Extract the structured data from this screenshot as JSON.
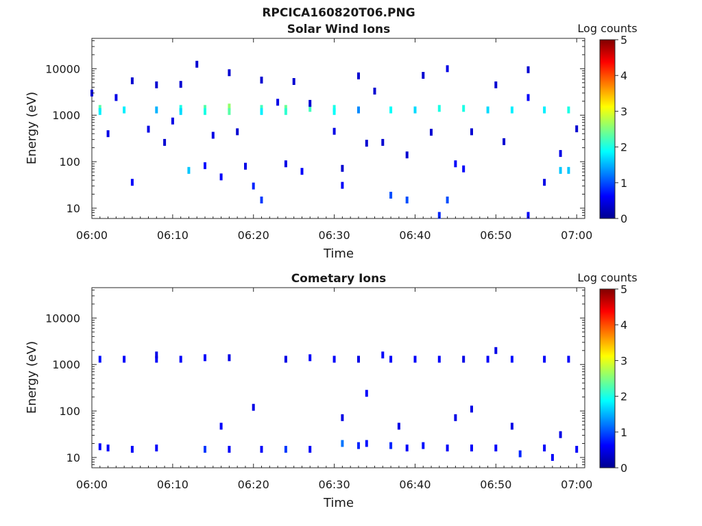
{
  "figure_title": "RPCICA160820T06.PNG",
  "chart_data": [
    {
      "type": "heatmap",
      "title": "Solar Wind Ions",
      "xlabel": "Time",
      "ylabel": "Energy (eV)",
      "xlim": [
        "06:00",
        "07:01"
      ],
      "x_ticks": [
        "06:00",
        "06:10",
        "06:20",
        "06:30",
        "06:40",
        "06:50",
        "07:00"
      ],
      "ylim": [
        6,
        45000
      ],
      "y_scale": "log",
      "y_ticks": [
        "10",
        "100",
        "1000",
        "10000"
      ],
      "grid": false,
      "colorbar": {
        "title": "Log counts",
        "range": [
          0,
          5
        ],
        "ticks": [
          "0",
          "1",
          "2",
          "3",
          "4",
          "5"
        ],
        "colormap": "jet"
      },
      "points": [
        {
          "t": "06:01",
          "e": 1400,
          "v": 2.3
        },
        {
          "t": "06:01",
          "e": 1200,
          "v": 1.8
        },
        {
          "t": "06:04",
          "e": 1300,
          "v": 1.8
        },
        {
          "t": "06:08",
          "e": 1300,
          "v": 1.5
        },
        {
          "t": "06:11",
          "e": 1400,
          "v": 2.0
        },
        {
          "t": "06:11",
          "e": 1200,
          "v": 1.7
        },
        {
          "t": "06:14",
          "e": 1400,
          "v": 2.3
        },
        {
          "t": "06:14",
          "e": 1200,
          "v": 2.0
        },
        {
          "t": "06:17",
          "e": 1500,
          "v": 2.6
        },
        {
          "t": "06:17",
          "e": 1200,
          "v": 2.3
        },
        {
          "t": "06:21",
          "e": 1400,
          "v": 2.2
        },
        {
          "t": "06:21",
          "e": 1200,
          "v": 1.8
        },
        {
          "t": "06:24",
          "e": 1400,
          "v": 2.4
        },
        {
          "t": "06:24",
          "e": 1200,
          "v": 2.1
        },
        {
          "t": "06:27",
          "e": 1400,
          "v": 2.2
        },
        {
          "t": "06:30",
          "e": 1400,
          "v": 2.0
        },
        {
          "t": "06:30",
          "e": 1200,
          "v": 1.9
        },
        {
          "t": "06:33",
          "e": 1300,
          "v": 1.3
        },
        {
          "t": "06:37",
          "e": 1300,
          "v": 1.9
        },
        {
          "t": "06:40",
          "e": 1300,
          "v": 1.7
        },
        {
          "t": "06:43",
          "e": 1400,
          "v": 2.0
        },
        {
          "t": "06:46",
          "e": 1400,
          "v": 2.0
        },
        {
          "t": "06:49",
          "e": 1300,
          "v": 1.7
        },
        {
          "t": "06:52",
          "e": 1300,
          "v": 1.8
        },
        {
          "t": "06:56",
          "e": 1300,
          "v": 1.8
        },
        {
          "t": "06:59",
          "e": 1300,
          "v": 2.0
        },
        {
          "t": "06:00",
          "e": 3000,
          "v": 0.4
        },
        {
          "t": "06:02",
          "e": 400,
          "v": 0.5
        },
        {
          "t": "06:03",
          "e": 2400,
          "v": 0.5
        },
        {
          "t": "06:05",
          "e": 5500,
          "v": 0.4
        },
        {
          "t": "06:05",
          "e": 36,
          "v": 0.6
        },
        {
          "t": "06:07",
          "e": 500,
          "v": 0.5
        },
        {
          "t": "06:08",
          "e": 4500,
          "v": 0.4
        },
        {
          "t": "06:09",
          "e": 260,
          "v": 0.4
        },
        {
          "t": "06:10",
          "e": 750,
          "v": 0.5
        },
        {
          "t": "06:11",
          "e": 4600,
          "v": 0.4
        },
        {
          "t": "06:12",
          "e": 65,
          "v": 1.6
        },
        {
          "t": "06:13",
          "e": 12500,
          "v": 0.4
        },
        {
          "t": "06:14",
          "e": 82,
          "v": 0.7
        },
        {
          "t": "06:15",
          "e": 370,
          "v": 0.5
        },
        {
          "t": "06:16",
          "e": 47,
          "v": 0.6
        },
        {
          "t": "06:17",
          "e": 8200,
          "v": 0.4
        },
        {
          "t": "06:18",
          "e": 440,
          "v": 0.4
        },
        {
          "t": "06:19",
          "e": 80,
          "v": 0.5
        },
        {
          "t": "06:20",
          "e": 30,
          "v": 0.8
        },
        {
          "t": "06:21",
          "e": 5700,
          "v": 0.4
        },
        {
          "t": "06:21",
          "e": 15,
          "v": 0.9
        },
        {
          "t": "06:23",
          "e": 1900,
          "v": 0.5
        },
        {
          "t": "06:24",
          "e": 90,
          "v": 0.5
        },
        {
          "t": "06:25",
          "e": 5300,
          "v": 0.4
        },
        {
          "t": "06:26",
          "e": 62,
          "v": 0.6
        },
        {
          "t": "06:27",
          "e": 1800,
          "v": 0.4
        },
        {
          "t": "06:30",
          "e": 450,
          "v": 0.5
        },
        {
          "t": "06:31",
          "e": 72,
          "v": 0.4
        },
        {
          "t": "06:31",
          "e": 31,
          "v": 0.6
        },
        {
          "t": "06:33",
          "e": 7000,
          "v": 0.4
        },
        {
          "t": "06:34",
          "e": 250,
          "v": 0.4
        },
        {
          "t": "06:35",
          "e": 3300,
          "v": 0.4
        },
        {
          "t": "06:36",
          "e": 260,
          "v": 0.4
        },
        {
          "t": "06:37",
          "e": 19,
          "v": 1.0
        },
        {
          "t": "06:39",
          "e": 140,
          "v": 0.4
        },
        {
          "t": "06:39",
          "e": 15,
          "v": 1.0
        },
        {
          "t": "06:41",
          "e": 7200,
          "v": 0.4
        },
        {
          "t": "06:42",
          "e": 430,
          "v": 0.4
        },
        {
          "t": "06:43",
          "e": 7,
          "v": 0.8
        },
        {
          "t": "06:44",
          "e": 15,
          "v": 1.0
        },
        {
          "t": "06:44",
          "e": 10000,
          "v": 0.5
        },
        {
          "t": "06:45",
          "e": 90,
          "v": 0.6
        },
        {
          "t": "06:46",
          "e": 70,
          "v": 0.6
        },
        {
          "t": "06:47",
          "e": 440,
          "v": 0.4
        },
        {
          "t": "06:50",
          "e": 4500,
          "v": 0.4
        },
        {
          "t": "06:51",
          "e": 270,
          "v": 0.4
        },
        {
          "t": "06:54",
          "e": 2400,
          "v": 0.6
        },
        {
          "t": "06:54",
          "e": 9500,
          "v": 0.4
        },
        {
          "t": "06:54",
          "e": 7,
          "v": 0.6
        },
        {
          "t": "06:56",
          "e": 36,
          "v": 0.5
        },
        {
          "t": "06:58",
          "e": 150,
          "v": 0.5
        },
        {
          "t": "06:58",
          "e": 65,
          "v": 1.6
        },
        {
          "t": "06:59",
          "e": 65,
          "v": 1.6
        },
        {
          "t": "07:00",
          "e": 510,
          "v": 0.4
        }
      ]
    },
    {
      "type": "heatmap",
      "title": "Cometary Ions",
      "xlabel": "Time",
      "ylabel": "Energy (eV)",
      "xlim": [
        "06:00",
        "07:01"
      ],
      "x_ticks": [
        "06:00",
        "06:10",
        "06:20",
        "06:30",
        "06:40",
        "06:50",
        "07:00"
      ],
      "ylim": [
        6,
        45000
      ],
      "y_scale": "log",
      "y_ticks": [
        "10",
        "100",
        "1000",
        "10000"
      ],
      "grid": false,
      "colorbar": {
        "title": "Log counts",
        "range": [
          0,
          5
        ],
        "ticks": [
          "0",
          "1",
          "2",
          "3",
          "4",
          "5"
        ],
        "colormap": "jet"
      },
      "points": [
        {
          "t": "06:01",
          "e": 1300,
          "v": 0.7
        },
        {
          "t": "06:04",
          "e": 1300,
          "v": 0.6
        },
        {
          "t": "06:08",
          "e": 1300,
          "v": 0.6
        },
        {
          "t": "06:08",
          "e": 1600,
          "v": 0.5
        },
        {
          "t": "06:11",
          "e": 1300,
          "v": 0.6
        },
        {
          "t": "06:14",
          "e": 1400,
          "v": 0.6
        },
        {
          "t": "06:17",
          "e": 1400,
          "v": 0.5
        },
        {
          "t": "06:24",
          "e": 1300,
          "v": 0.5
        },
        {
          "t": "06:27",
          "e": 1400,
          "v": 0.6
        },
        {
          "t": "06:30",
          "e": 1300,
          "v": 0.6
        },
        {
          "t": "06:33",
          "e": 1300,
          "v": 0.5
        },
        {
          "t": "06:36",
          "e": 1600,
          "v": 0.6
        },
        {
          "t": "06:37",
          "e": 1300,
          "v": 0.6
        },
        {
          "t": "06:40",
          "e": 1300,
          "v": 0.6
        },
        {
          "t": "06:43",
          "e": 1300,
          "v": 0.6
        },
        {
          "t": "06:46",
          "e": 1300,
          "v": 0.5
        },
        {
          "t": "06:49",
          "e": 1300,
          "v": 0.6
        },
        {
          "t": "06:50",
          "e": 2000,
          "v": 0.5
        },
        {
          "t": "06:52",
          "e": 1300,
          "v": 0.7
        },
        {
          "t": "06:56",
          "e": 1300,
          "v": 0.6
        },
        {
          "t": "06:59",
          "e": 1300,
          "v": 0.6
        },
        {
          "t": "06:20",
          "e": 120,
          "v": 0.5
        },
        {
          "t": "06:31",
          "e": 72,
          "v": 0.5
        },
        {
          "t": "06:34",
          "e": 240,
          "v": 0.6
        },
        {
          "t": "06:38",
          "e": 47,
          "v": 0.5
        },
        {
          "t": "06:45",
          "e": 72,
          "v": 0.5
        },
        {
          "t": "06:47",
          "e": 110,
          "v": 0.5
        },
        {
          "t": "06:52",
          "e": 47,
          "v": 0.5
        },
        {
          "t": "06:58",
          "e": 31,
          "v": 0.5
        },
        {
          "t": "06:16",
          "e": 47,
          "v": 0.6
        },
        {
          "t": "06:01",
          "e": 17,
          "v": 0.6
        },
        {
          "t": "06:02",
          "e": 16,
          "v": 0.6
        },
        {
          "t": "06:05",
          "e": 15,
          "v": 0.6
        },
        {
          "t": "06:08",
          "e": 16,
          "v": 0.6
        },
        {
          "t": "06:14",
          "e": 15,
          "v": 0.9
        },
        {
          "t": "06:17",
          "e": 15,
          "v": 0.6
        },
        {
          "t": "06:21",
          "e": 15,
          "v": 0.6
        },
        {
          "t": "06:24",
          "e": 15,
          "v": 0.9
        },
        {
          "t": "06:27",
          "e": 15,
          "v": 0.6
        },
        {
          "t": "06:31",
          "e": 20,
          "v": 1.2
        },
        {
          "t": "06:33",
          "e": 18,
          "v": 0.8
        },
        {
          "t": "06:34",
          "e": 20,
          "v": 0.7
        },
        {
          "t": "06:37",
          "e": 18,
          "v": 0.8
        },
        {
          "t": "06:39",
          "e": 16,
          "v": 0.6
        },
        {
          "t": "06:41",
          "e": 18,
          "v": 0.7
        },
        {
          "t": "06:44",
          "e": 16,
          "v": 0.6
        },
        {
          "t": "06:47",
          "e": 16,
          "v": 0.6
        },
        {
          "t": "06:50",
          "e": 16,
          "v": 0.6
        },
        {
          "t": "06:53",
          "e": 12,
          "v": 0.8
        },
        {
          "t": "06:56",
          "e": 16,
          "v": 0.6
        },
        {
          "t": "06:57",
          "e": 10,
          "v": 0.6
        },
        {
          "t": "07:00",
          "e": 15,
          "v": 0.6
        }
      ]
    }
  ]
}
